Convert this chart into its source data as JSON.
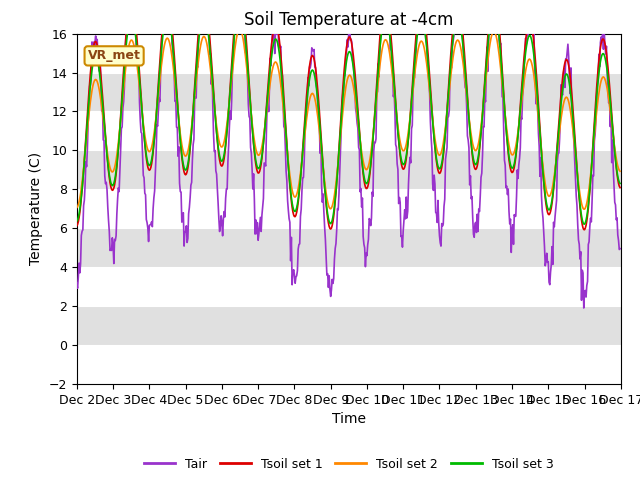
{
  "title": "Soil Temperature at -4cm",
  "xlabel": "Time",
  "ylabel": "Temperature (C)",
  "ylim": [
    -2,
    16
  ],
  "yticks": [
    -2,
    0,
    2,
    4,
    6,
    8,
    10,
    12,
    14,
    16
  ],
  "xtick_labels": [
    "Dec 2",
    "Dec 3",
    "Dec 4",
    "Dec 5",
    "Dec 6",
    "Dec 7",
    "Dec 8",
    "Dec 9",
    "Dec 10",
    "Dec 11",
    "Dec 12",
    "Dec 13",
    "Dec 14",
    "Dec 15",
    "Dec 16",
    "Dec 17"
  ],
  "label_annotation": "VR_met",
  "colors": {
    "Tair": "#9933cc",
    "Tsoil1": "#dd0000",
    "Tsoil2": "#ff8800",
    "Tsoil3": "#00bb00"
  },
  "legend_labels": [
    "Tair",
    "Tsoil set 1",
    "Tsoil set 2",
    "Tsoil set 3"
  ],
  "bg_color": "#ffffff",
  "plot_bg": "#e0e0e0",
  "band_color": "#ffffff",
  "linewidth": 1.2,
  "title_fontsize": 12,
  "axis_fontsize": 10,
  "tick_fontsize": 9
}
